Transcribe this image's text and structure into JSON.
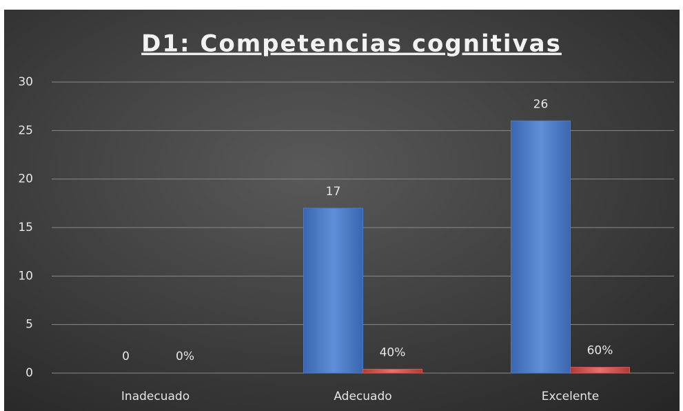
{
  "chart_data": {
    "type": "bar",
    "title": "D1: Competencias cognitivas",
    "categories": [
      "Inadecuado",
      "Adecuado",
      "Excelente"
    ],
    "series": [
      {
        "color": "#4a7cc9",
        "values": [
          0,
          17,
          26
        ]
      },
      {
        "color": "#d9534f",
        "values": [
          0,
          0.4,
          0.6
        ],
        "value_labels": [
          "0%",
          "40%",
          "60%"
        ]
      }
    ],
    "ylim": [
      0,
      30
    ],
    "yticks": [
      0,
      5,
      10,
      15,
      20,
      25,
      30
    ],
    "grid": true
  }
}
